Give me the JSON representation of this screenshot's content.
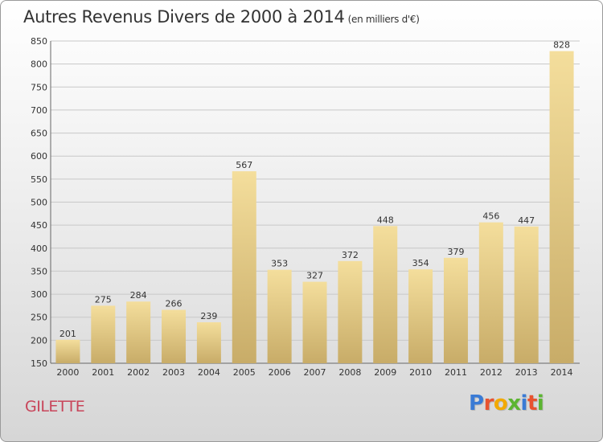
{
  "title": "Autres Revenus Divers de 2000 à 2014",
  "subtitle": "(en milliers d'€)",
  "place_label": "GILETTE",
  "logo_text": "Proxiti",
  "colors": {
    "bar_light": "#f3dc9a",
    "bar_dark": "#c9ad68",
    "grid": "#c8c8c8",
    "place": "#c8455a"
  },
  "chart_data": {
    "type": "bar",
    "title": "Autres Revenus Divers de 2000 à 2014",
    "subtitle": "(en milliers d'€)",
    "xlabel": "",
    "ylabel": "",
    "categories": [
      "2000",
      "2001",
      "2002",
      "2003",
      "2004",
      "2005",
      "2006",
      "2007",
      "2008",
      "2009",
      "2010",
      "2011",
      "2012",
      "2013",
      "2014"
    ],
    "values": [
      201,
      275,
      284,
      266,
      239,
      567,
      353,
      327,
      372,
      448,
      354,
      379,
      456,
      447,
      828
    ],
    "ylim": [
      150,
      850
    ],
    "yticks": [
      150,
      200,
      250,
      300,
      350,
      400,
      450,
      500,
      550,
      600,
      650,
      700,
      750,
      800,
      850
    ],
    "grid": true,
    "legend": "none"
  }
}
